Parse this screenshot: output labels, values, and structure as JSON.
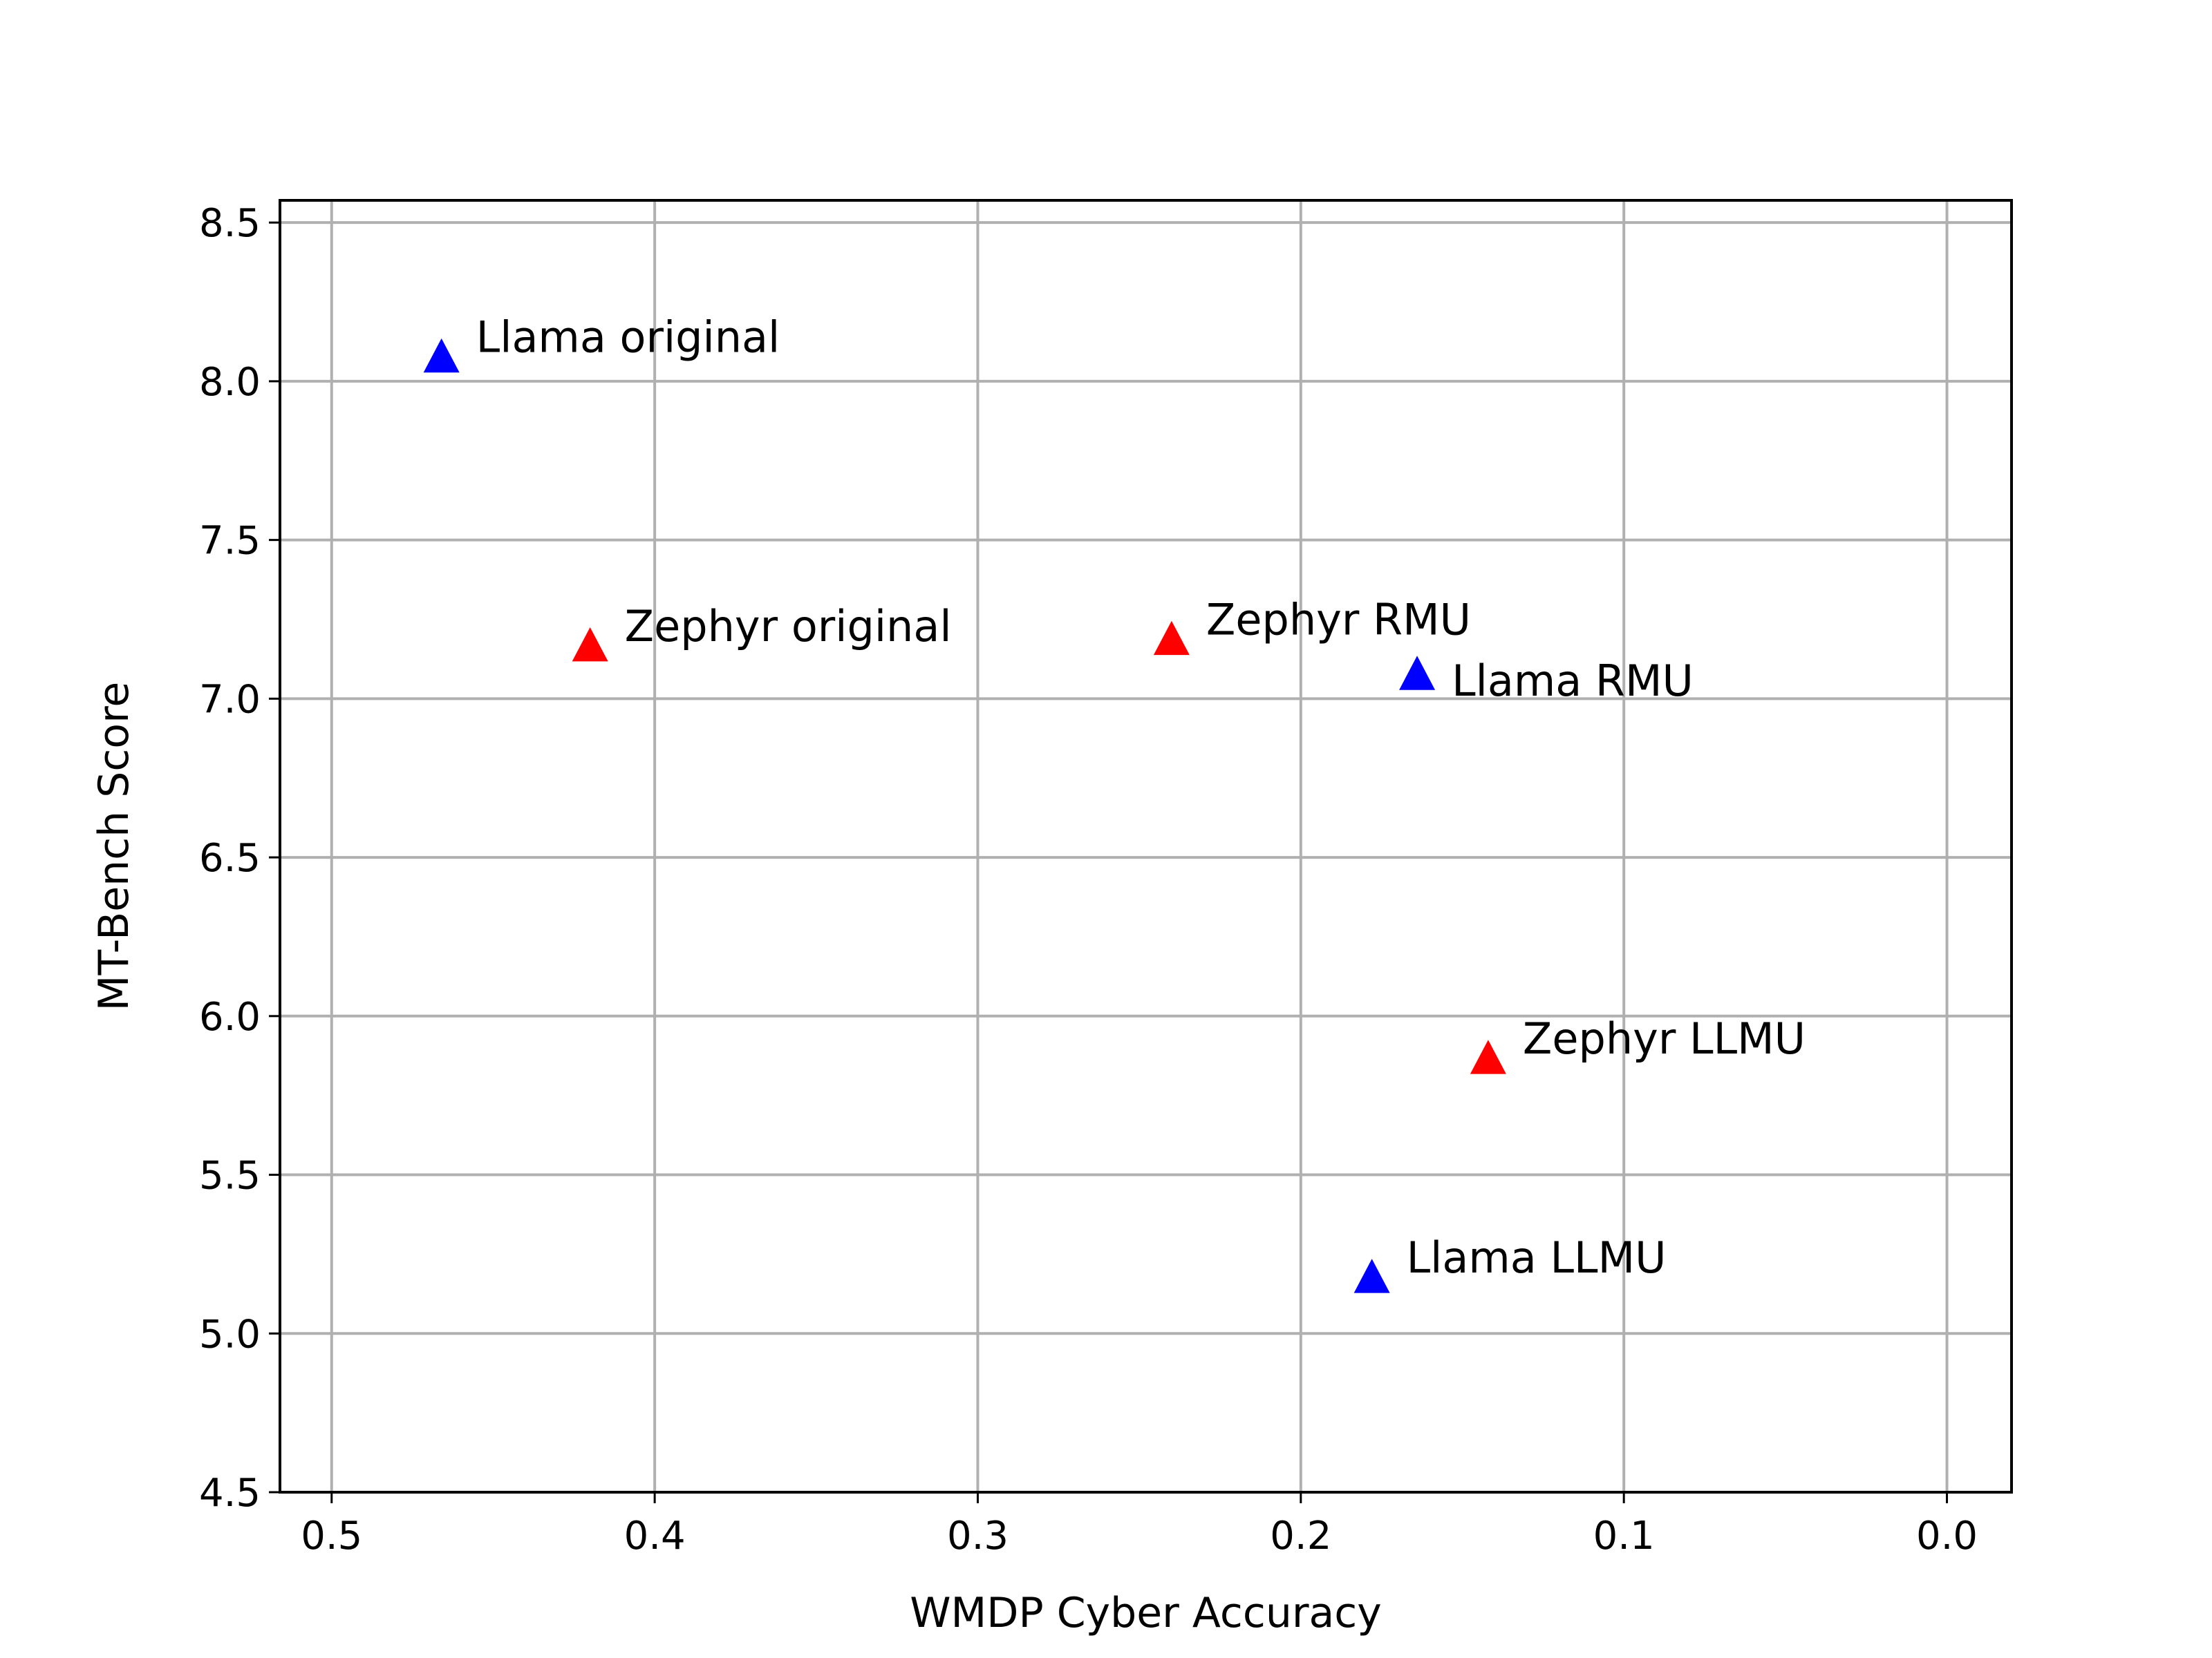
{
  "chart_data": {
    "type": "scatter",
    "title": "",
    "xlabel": "WMDP Cyber Accuracy",
    "ylabel": "MT-Bench Score",
    "xlim": [
      0.516,
      -0.02
    ],
    "ylim": [
      4.5,
      8.57
    ],
    "x_inverted": true,
    "xticks": [
      0.5,
      0.4,
      0.3,
      0.2,
      0.1,
      0.0
    ],
    "xtick_labels": [
      "0.5",
      "0.4",
      "0.3",
      "0.2",
      "0.1",
      "0.0"
    ],
    "yticks": [
      4.5,
      5.0,
      5.5,
      6.0,
      6.5,
      7.0,
      7.5,
      8.0,
      8.5
    ],
    "ytick_labels": [
      "4.5",
      "5.0",
      "5.5",
      "6.0",
      "6.5",
      "7.0",
      "7.5",
      "8.0",
      "8.5"
    ],
    "grid": true,
    "marker": "triangle",
    "points": [
      {
        "label": "Llama original",
        "x": 0.466,
        "y": 8.07,
        "color": "#0000ff",
        "label_pos": "right-up"
      },
      {
        "label": "Zephyr original",
        "x": 0.42,
        "y": 7.16,
        "color": "#ff0000",
        "label_pos": "right-up"
      },
      {
        "label": "Zephyr RMU",
        "x": 0.24,
        "y": 7.18,
        "color": "#ff0000",
        "label_pos": "right-up"
      },
      {
        "label": "Llama RMU",
        "x": 0.164,
        "y": 7.07,
        "color": "#0000ff",
        "label_pos": "right-down"
      },
      {
        "label": "Zephyr LLMU",
        "x": 0.142,
        "y": 5.86,
        "color": "#ff0000",
        "label_pos": "right-up"
      },
      {
        "label": "Llama LLMU",
        "x": 0.178,
        "y": 5.17,
        "color": "#0000ff",
        "label_pos": "right-up"
      }
    ]
  }
}
